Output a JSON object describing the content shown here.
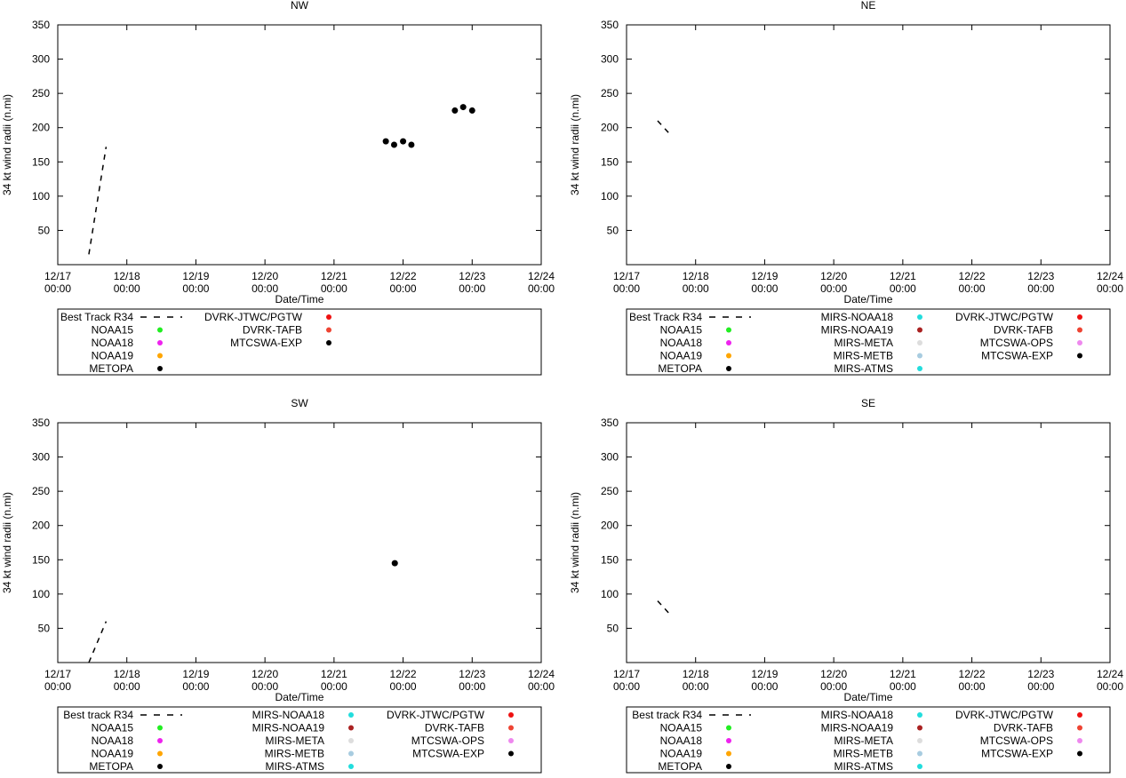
{
  "chart_data": [
    {
      "type": "scatter",
      "title": "NW",
      "xlabel": "Date/Time",
      "ylabel": "34 kt wind radii (n.mi)",
      "xlim": [
        0,
        7
      ],
      "ylim": [
        0,
        350
      ],
      "yticks": [
        50,
        100,
        150,
        200,
        250,
        300,
        350
      ],
      "xticks": [
        {
          "date": "12/17",
          "time": "00:00"
        },
        {
          "date": "12/18",
          "time": "00:00"
        },
        {
          "date": "12/19",
          "time": "00:00"
        },
        {
          "date": "12/20",
          "time": "00:00"
        },
        {
          "date": "12/21",
          "time": "00:00"
        },
        {
          "date": "12/22",
          "time": "00:00"
        },
        {
          "date": "12/23",
          "time": "00:00"
        },
        {
          "date": "12/24",
          "time": "00:00"
        }
      ],
      "best_track": [
        [
          0.45,
          15
        ],
        [
          0.7,
          172
        ]
      ],
      "series": [
        {
          "name": "MTCSWA-EXP",
          "color": "#000000",
          "points": [
            [
              4.75,
              180
            ],
            [
              4.87,
              175
            ],
            [
              5.0,
              180
            ],
            [
              5.12,
              175
            ],
            [
              5.75,
              225
            ],
            [
              5.87,
              230
            ],
            [
              6.0,
              225
            ]
          ]
        }
      ],
      "legend": {
        "columns": [
          [
            {
              "label": "Best Track R34",
              "kind": "line"
            },
            {
              "label": "NOAA15",
              "color": "#22ee22"
            },
            {
              "label": "NOAA18",
              "color": "#ee22ee"
            },
            {
              "label": "NOAA19",
              "color": "#ffa500"
            },
            {
              "label": "METOPA",
              "color": "#000000"
            }
          ],
          [
            {
              "label": "DVRK-JTWC/PGTW",
              "color": "#ee1111"
            },
            {
              "label": "DVRK-TAFB",
              "color": "#ee4433"
            },
            {
              "label": "MTCSWA-EXP",
              "color": "#000000"
            }
          ]
        ]
      }
    },
    {
      "type": "scatter",
      "title": "NE",
      "xlabel": "Date/Time",
      "ylabel": "34 kt wind radii (n.mi)",
      "xlim": [
        0,
        7
      ],
      "ylim": [
        0,
        350
      ],
      "yticks": [
        50,
        100,
        150,
        200,
        250,
        300,
        350
      ],
      "xticks": [
        {
          "date": "12/17",
          "time": "00:00"
        },
        {
          "date": "12/18",
          "time": "00:00"
        },
        {
          "date": "12/19",
          "time": "00:00"
        },
        {
          "date": "12/20",
          "time": "00:00"
        },
        {
          "date": "12/21",
          "time": "00:00"
        },
        {
          "date": "12/22",
          "time": "00:00"
        },
        {
          "date": "12/23",
          "time": "00:00"
        },
        {
          "date": "12/24",
          "time": "00:00"
        }
      ],
      "best_track": [
        [
          0.45,
          210
        ],
        [
          0.65,
          188
        ]
      ],
      "series": [],
      "legend": {
        "columns": [
          [
            {
              "label": "Best Track R34",
              "kind": "line"
            },
            {
              "label": "NOAA15",
              "color": "#22ee22"
            },
            {
              "label": "NOAA18",
              "color": "#ee22ee"
            },
            {
              "label": "NOAA19",
              "color": "#ffa500"
            },
            {
              "label": "METOPA",
              "color": "#000000"
            }
          ],
          [
            {
              "label": "MIRS-NOAA18",
              "color": "#22dddd"
            },
            {
              "label": "MIRS-NOAA19",
              "color": "#aa2222"
            },
            {
              "label": "MIRS-META",
              "color": "#dddddd"
            },
            {
              "label": "MIRS-METB",
              "color": "#a8cce0"
            },
            {
              "label": "MIRS-ATMS",
              "color": "#22dddd"
            }
          ],
          [
            {
              "label": "DVRK-JTWC/PGTW",
              "color": "#ee1111"
            },
            {
              "label": "DVRK-TAFB",
              "color": "#ee4433"
            },
            {
              "label": "MTCSWA-OPS",
              "color": "#ee88ee"
            },
            {
              "label": "MTCSWA-EXP",
              "color": "#000000"
            }
          ]
        ]
      }
    },
    {
      "type": "scatter",
      "title": "SW",
      "xlabel": "Date/Time",
      "ylabel": "34 kt wind radii (n.mi)",
      "xlim": [
        0,
        7
      ],
      "ylim": [
        0,
        350
      ],
      "yticks": [
        50,
        100,
        150,
        200,
        250,
        300,
        350
      ],
      "xticks": [
        {
          "date": "12/17",
          "time": "00:00"
        },
        {
          "date": "12/18",
          "time": "00:00"
        },
        {
          "date": "12/19",
          "time": "00:00"
        },
        {
          "date": "12/20",
          "time": "00:00"
        },
        {
          "date": "12/21",
          "time": "00:00"
        },
        {
          "date": "12/22",
          "time": "00:00"
        },
        {
          "date": "12/23",
          "time": "00:00"
        },
        {
          "date": "12/24",
          "time": "00:00"
        }
      ],
      "best_track": [
        [
          0.45,
          0
        ],
        [
          0.7,
          60
        ]
      ],
      "series": [
        {
          "name": "MTCSWA-EXP",
          "color": "#000000",
          "points": [
            [
              4.88,
              145
            ]
          ]
        }
      ],
      "legend": {
        "columns": [
          [
            {
              "label": "Best track R34",
              "kind": "line"
            },
            {
              "label": "NOAA15",
              "color": "#22ee22"
            },
            {
              "label": "NOAA18",
              "color": "#ee22ee"
            },
            {
              "label": "NOAA19",
              "color": "#ffa500"
            },
            {
              "label": "METOPA",
              "color": "#000000"
            }
          ],
          [
            {
              "label": "MIRS-NOAA18",
              "color": "#22dddd"
            },
            {
              "label": "MIRS-NOAA19",
              "color": "#aa2222"
            },
            {
              "label": "MIRS-META",
              "color": "#dddddd"
            },
            {
              "label": "MIRS-METB",
              "color": "#a8cce0"
            },
            {
              "label": "MIRS-ATMS",
              "color": "#22dddd"
            }
          ],
          [
            {
              "label": "DVRK-JTWC/PGTW",
              "color": "#ee1111"
            },
            {
              "label": "DVRK-TAFB",
              "color": "#ee4433"
            },
            {
              "label": "MTCSWA-OPS",
              "color": "#ee88ee"
            },
            {
              "label": "MTCSWA-EXP",
              "color": "#000000"
            }
          ]
        ]
      }
    },
    {
      "type": "scatter",
      "title": "SE",
      "xlabel": "Date/Time",
      "ylabel": "34 kt wind radii (n.mi)",
      "xlim": [
        0,
        7
      ],
      "ylim": [
        0,
        350
      ],
      "yticks": [
        50,
        100,
        150,
        200,
        250,
        300,
        350
      ],
      "xticks": [
        {
          "date": "12/17",
          "time": "00:00"
        },
        {
          "date": "12/18",
          "time": "00:00"
        },
        {
          "date": "12/19",
          "time": "00:00"
        },
        {
          "date": "12/20",
          "time": "00:00"
        },
        {
          "date": "12/21",
          "time": "00:00"
        },
        {
          "date": "12/22",
          "time": "00:00"
        },
        {
          "date": "12/23",
          "time": "00:00"
        },
        {
          "date": "12/24",
          "time": "00:00"
        }
      ],
      "best_track": [
        [
          0.45,
          90
        ],
        [
          0.65,
          68
        ]
      ],
      "series": [],
      "legend": {
        "columns": [
          [
            {
              "label": "Best track R34",
              "kind": "line"
            },
            {
              "label": "NOAA15",
              "color": "#22ee22"
            },
            {
              "label": "NOAA18",
              "color": "#ee22ee"
            },
            {
              "label": "NOAA19",
              "color": "#ffa500"
            },
            {
              "label": "METOPA",
              "color": "#000000"
            }
          ],
          [
            {
              "label": "MIRS-NOAA18",
              "color": "#22dddd"
            },
            {
              "label": "MIRS-NOAA19",
              "color": "#aa2222"
            },
            {
              "label": "MIRS-META",
              "color": "#dddddd"
            },
            {
              "label": "MIRS-METB",
              "color": "#a8cce0"
            },
            {
              "label": "MIRS-ATMS",
              "color": "#22dddd"
            }
          ],
          [
            {
              "label": "DVRK-JTWC/PGTW",
              "color": "#ee1111"
            },
            {
              "label": "DVRK-TAFB",
              "color": "#ee4433"
            },
            {
              "label": "MTCSWA-OPS",
              "color": "#ee88ee"
            },
            {
              "label": "MTCSWA-EXP",
              "color": "#000000"
            }
          ]
        ]
      }
    }
  ]
}
